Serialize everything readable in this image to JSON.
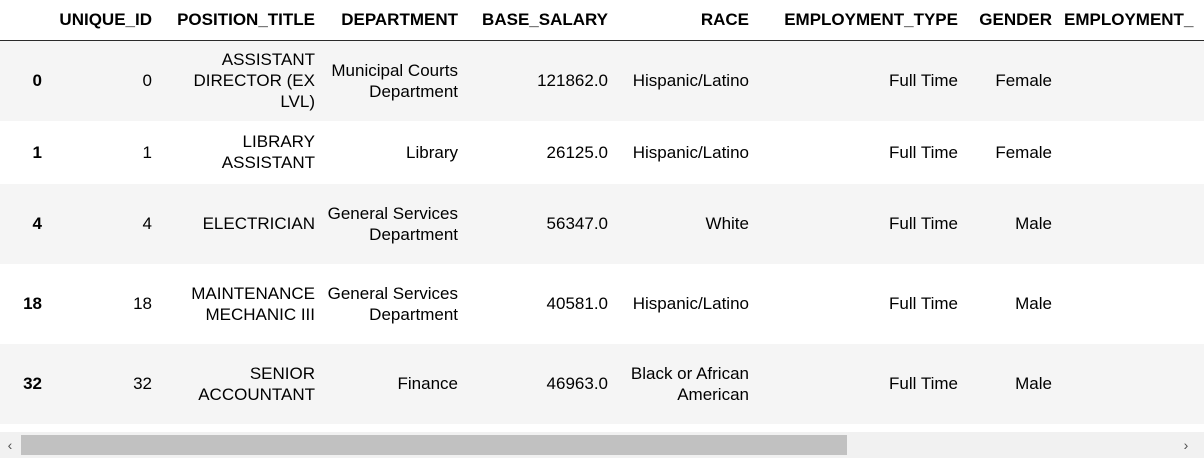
{
  "table": {
    "columns": [
      "UNIQUE_ID",
      "POSITION_TITLE",
      "DEPARTMENT",
      "BASE_SALARY",
      "RACE",
      "EMPLOYMENT_TYPE",
      "GENDER",
      "EMPLOYMENT_"
    ],
    "rows": [
      {
        "index": "0",
        "cells": [
          "0",
          "ASSISTANT DIRECTOR (EX LVL)",
          "Municipal Courts Department",
          "121862.0",
          "Hispanic/Latino",
          "Full Time",
          "Female",
          ""
        ]
      },
      {
        "index": "1",
        "cells": [
          "1",
          "LIBRARY ASSISTANT",
          "Library",
          "26125.0",
          "Hispanic/Latino",
          "Full Time",
          "Female",
          ""
        ]
      },
      {
        "index": "4",
        "cells": [
          "4",
          "ELECTRICIAN",
          "General Services Department",
          "56347.0",
          "White",
          "Full Time",
          "Male",
          ""
        ]
      },
      {
        "index": "18",
        "cells": [
          "18",
          "MAINTENANCE MECHANIC III",
          "General Services Department",
          "40581.0",
          "Hispanic/Latino",
          "Full Time",
          "Male",
          ""
        ]
      },
      {
        "index": "32",
        "cells": [
          "32",
          "SENIOR ACCOUNTANT",
          "Finance",
          "46963.0",
          "Black or African American",
          "Full Time",
          "Male",
          ""
        ]
      }
    ]
  },
  "scrollbar": {
    "left_arrow": "‹",
    "right_arrow": "›",
    "thumb_fraction": 0.72
  }
}
